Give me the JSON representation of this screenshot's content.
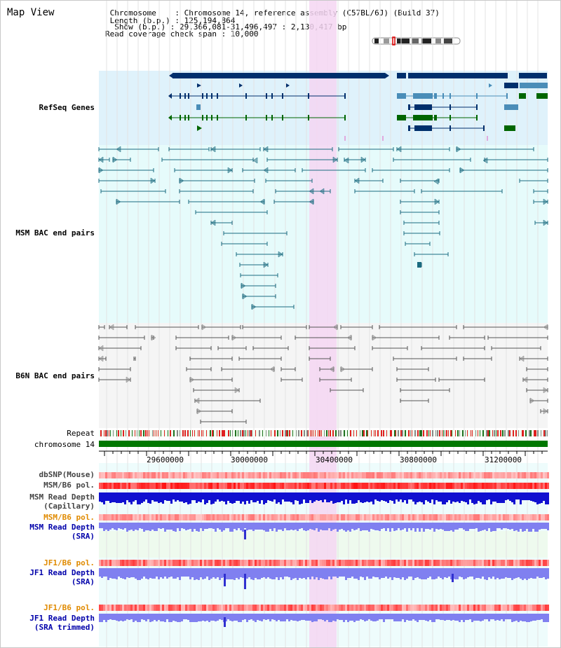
{
  "header": {
    "view_title": "Map View",
    "info_lines": [
      " Chromosome    : Chromosome 14, reference assembly (C57BL/6J) (Build 37)",
      " Length (b.p.) : 125,194,864",
      "  Show (b.p.) : 29,366,081-31,496,497 : 2,130,417 bp",
      "Read coverage check span : 10,000"
    ]
  },
  "tracks": {
    "refseq": {
      "label": "RefSeq Genes",
      "color": "#0000aa"
    },
    "msm_bac": {
      "label": "MSM BAC end pairs",
      "color": "#006070"
    },
    "b6n_bac": {
      "label": "B6N BAC end pairs",
      "color": "#555555"
    },
    "repeat": {
      "label": "Repeat"
    },
    "chromosome": {
      "label": "chromosome 14"
    },
    "dbsnp": {
      "label": "dbSNP(Mouse)",
      "color": "#444444"
    },
    "msm_b6_pol_1": {
      "label": "MSM/B6 pol.",
      "color": "#444444"
    },
    "msm_depth_cap": {
      "line1": "MSM Read Depth",
      "line2": "(Capillary)",
      "color": "#444444"
    },
    "msm_b6_pol_2": {
      "label": "MSM/B6 pol.",
      "color": "#e08a00"
    },
    "msm_depth_sra": {
      "line1": "MSM Read Depth",
      "line2": "(SRA)",
      "color": "#0000aa"
    },
    "jf1_b6_pol_1": {
      "label": "JF1/B6 pol.",
      "color": "#e08a00"
    },
    "jf1_depth_sra": {
      "line1": "JF1 Read Depth",
      "line2": "(SRA)",
      "color": "#0000aa"
    },
    "jf1_b6_pol_2": {
      "label": "JF1/B6 pol.",
      "color": "#e08a00"
    },
    "jf1_depth_trim": {
      "line1": "JF1 Read Depth",
      "line2": "(SRA trimmed)",
      "color": "#0000aa"
    }
  },
  "axis": {
    "ticks": [
      "29600000",
      "30000000",
      "30400000",
      "30800000",
      "31200000"
    ]
  },
  "colors": {
    "refseq_bg": "#dff2fb",
    "msm_bg": "#e6fbfb",
    "b6n_bg": "#f5f5f5",
    "highlight": "#f4d6f2",
    "chrom_bar": "#007700",
    "gene_dark": "#002f6c",
    "gene_mid": "#4a8db8",
    "gene_green": "#006600",
    "depth_cap": "#1010d0",
    "depth_sra": "#8080f0"
  }
}
